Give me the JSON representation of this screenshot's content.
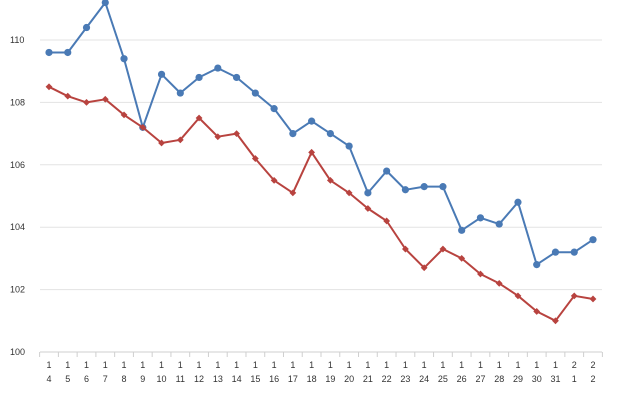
{
  "chart_data": {
    "type": "line",
    "title": "",
    "xlabel": "",
    "ylabel": "",
    "ylim": [
      100,
      110
    ],
    "yticks": [
      "100",
      "102",
      "104",
      "106",
      "108",
      "110"
    ],
    "grid": true,
    "categories": [
      [
        "1",
        "4"
      ],
      [
        "1",
        "5"
      ],
      [
        "1",
        "6"
      ],
      [
        "1",
        "7"
      ],
      [
        "1",
        "8"
      ],
      [
        "1",
        "9"
      ],
      [
        "1",
        "10"
      ],
      [
        "1",
        "11"
      ],
      [
        "1",
        "12"
      ],
      [
        "1",
        "13"
      ],
      [
        "1",
        "14"
      ],
      [
        "1",
        "15"
      ],
      [
        "1",
        "16"
      ],
      [
        "1",
        "17"
      ],
      [
        "1",
        "18"
      ],
      [
        "1",
        "19"
      ],
      [
        "1",
        "20"
      ],
      [
        "1",
        "21"
      ],
      [
        "1",
        "22"
      ],
      [
        "1",
        "23"
      ],
      [
        "1",
        "24"
      ],
      [
        "1",
        "25"
      ],
      [
        "1",
        "26"
      ],
      [
        "1",
        "27"
      ],
      [
        "1",
        "28"
      ],
      [
        "1",
        "29"
      ],
      [
        "1",
        "30"
      ],
      [
        "1",
        "31"
      ],
      [
        "2",
        "1"
      ],
      [
        "2",
        "2"
      ]
    ],
    "series": [
      {
        "color": "#4a7ab5",
        "marker": "circle",
        "values": [
          109.6,
          109.6,
          110.4,
          111.2,
          109.4,
          107.2,
          108.9,
          108.3,
          108.8,
          109.1,
          108.8,
          108.3,
          107.8,
          107.0,
          107.4,
          107.0,
          106.6,
          105.1,
          105.8,
          105.2,
          105.3,
          105.3,
          103.9,
          104.3,
          104.1,
          104.8,
          102.8,
          103.2,
          103.2,
          103.6
        ]
      },
      {
        "color": "#b8433f",
        "marker": "diamond",
        "values": [
          108.5,
          108.2,
          108.0,
          108.1,
          107.6,
          107.2,
          106.7,
          106.8,
          107.5,
          106.9,
          107.0,
          106.2,
          105.5,
          105.1,
          106.4,
          105.5,
          105.1,
          104.6,
          104.2,
          103.3,
          102.7,
          103.3,
          103.0,
          102.5,
          102.2,
          101.8,
          101.3,
          101.0,
          101.8,
          101.7
        ]
      }
    ]
  }
}
